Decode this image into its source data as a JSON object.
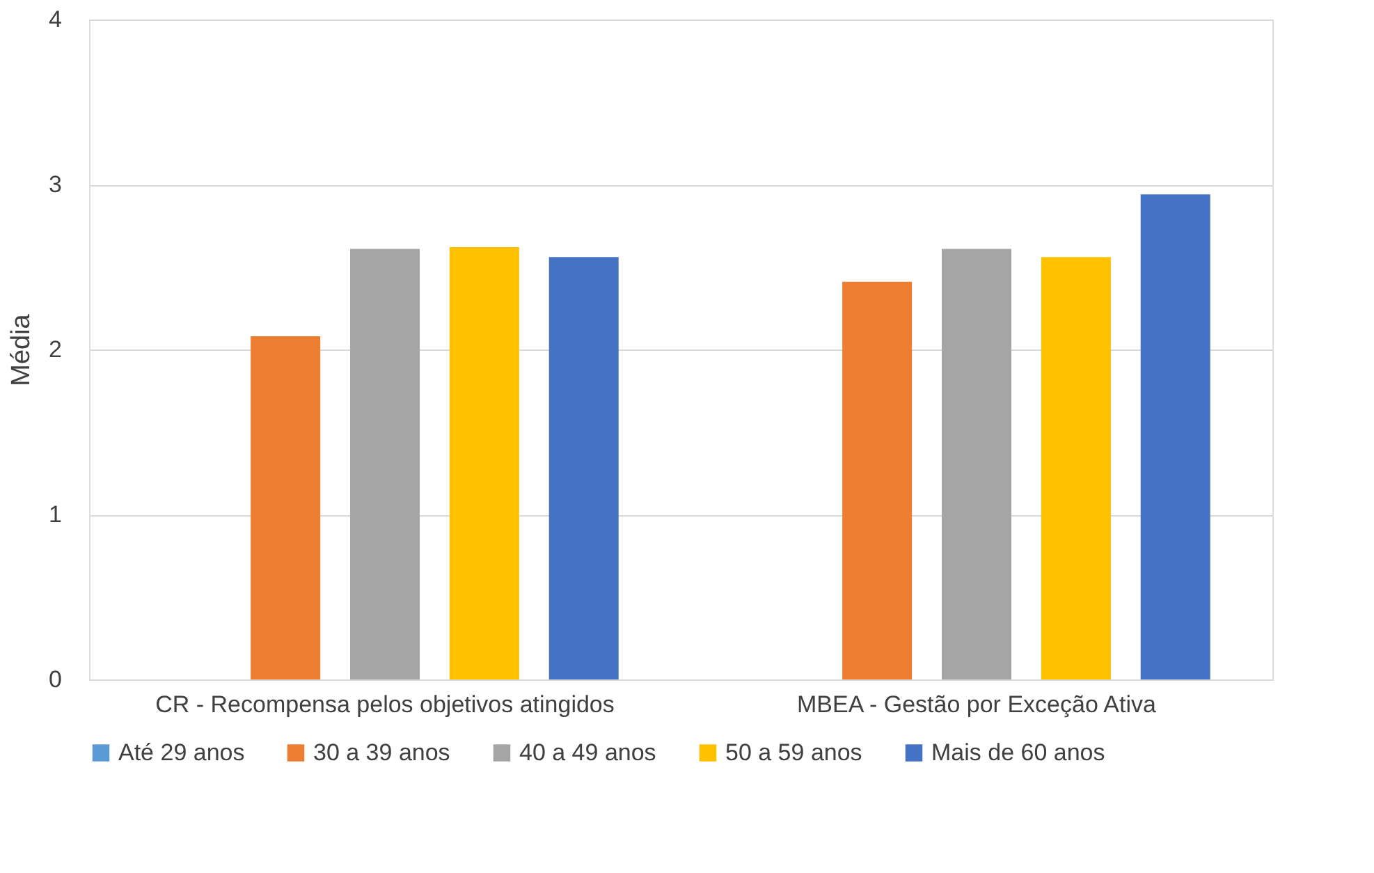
{
  "chart_data": {
    "type": "bar",
    "ylabel": "Média",
    "categories": [
      "CR - Recompensa pelos objetivos atingidos",
      "MBEA - Gestão por Exceção Ativa"
    ],
    "series": [
      {
        "name": "Até 29 anos",
        "color": "#5b9bd5",
        "values": [
          null,
          null
        ]
      },
      {
        "name": "30 a 39 anos",
        "color": "#ed7d31",
        "values": [
          2.08,
          2.41
        ]
      },
      {
        "name": "40 a 49 anos",
        "color": "#a5a5a5",
        "values": [
          2.61,
          2.61
        ]
      },
      {
        "name": "50 a 59 anos",
        "color": "#ffc000",
        "values": [
          2.62,
          2.56
        ]
      },
      {
        "name": "Mais de 60 anos",
        "color": "#4472c4",
        "values": [
          2.56,
          2.94
        ]
      }
    ],
    "ylim": [
      0,
      4
    ],
    "yticks": [
      0,
      1,
      2,
      3,
      4
    ],
    "grid": "y",
    "legend": "bottom"
  }
}
